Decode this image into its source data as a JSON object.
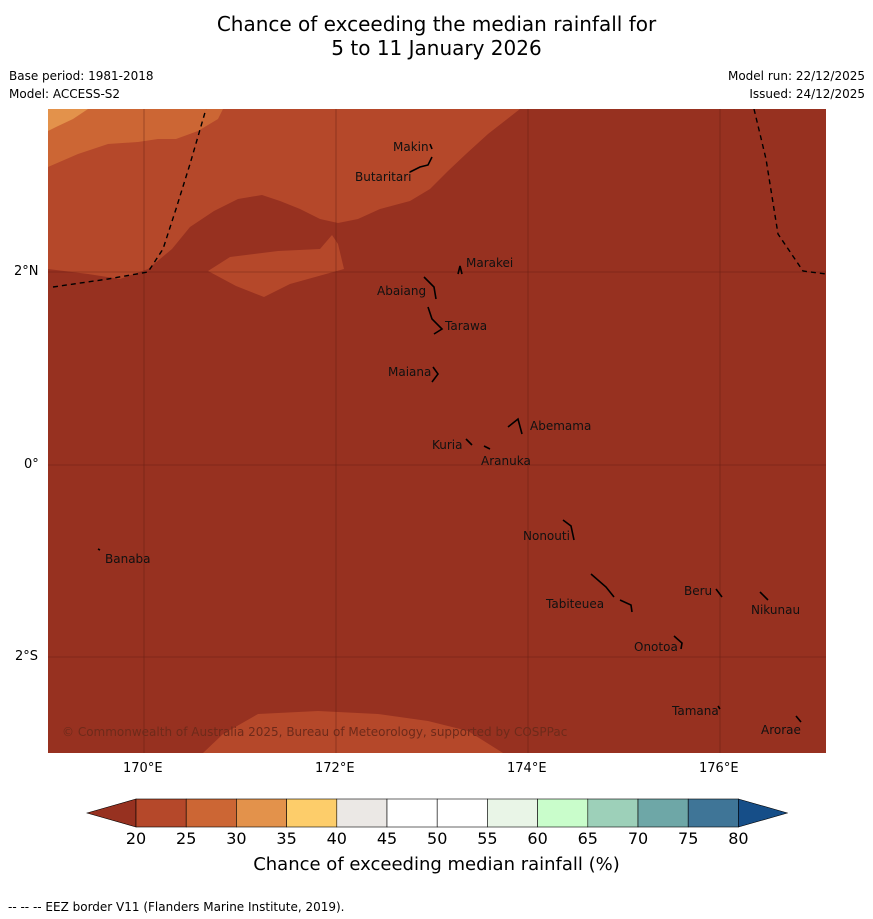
{
  "title": {
    "line1": "Chance of exceeding the median rainfall for",
    "line2": "5 to 11 January 2026"
  },
  "meta": {
    "base_period": "Base period: 1981-2018",
    "model": "Model: ACCESS-S2",
    "model_run": "Model run: 22/12/2025",
    "issued": "Issued: 24/12/2025"
  },
  "map": {
    "lon_labels": [
      "170°E",
      "172°E",
      "174°E",
      "176°E"
    ],
    "lat_labels": [
      "2°N",
      "0°",
      "2°S"
    ],
    "copyright": "© Commonwealth of Australia 2025, Bureau of Meteorology, supported by COSPPac",
    "places": [
      "Makin",
      "Butaritari",
      "Marakei",
      "Abaiang",
      "Tarawa",
      "Maiana",
      "Abemama",
      "Kuria",
      "Aranuka",
      "Nonouti",
      "Banaba",
      "Beru",
      "Nikunau",
      "Tabiteuea",
      "Onotoa",
      "Tamana",
      "Arorae"
    ],
    "colors": {
      "20_25": "#b5482a",
      "25_30": "#cc6634",
      "30_35": "#e3924b",
      "below_20": "#973120",
      "eez_border": "#000000"
    }
  },
  "colorbar": {
    "ticks": [
      "20",
      "25",
      "30",
      "35",
      "40",
      "45",
      "50",
      "55",
      "60",
      "65",
      "70",
      "75",
      "80"
    ],
    "colors": [
      "#973120",
      "#b5482a",
      "#cc6634",
      "#e3924b",
      "#fdcd6a",
      "#ebe8e5",
      "#ffffff",
      "#ffffff",
      "#e9f5e7",
      "#c9fdcb",
      "#9dd0b9",
      "#6ea7a7",
      "#3f7597",
      "#164e88"
    ],
    "label": "Chance of exceeding median rainfall (%)"
  },
  "footer": {
    "eez_credit": "--  --  -- EEZ border V11 (Flanders Marine Institute, 2019)."
  }
}
